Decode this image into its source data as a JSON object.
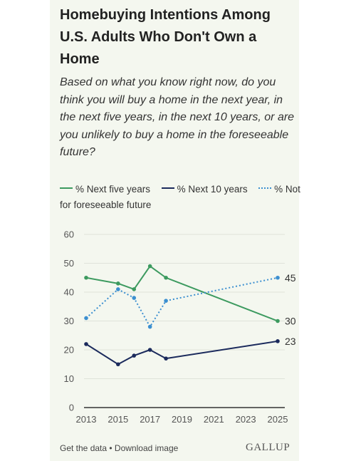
{
  "title": "Homebuying Intentions Among U.S. Adults Who Don't Own a Home",
  "subtitle": "Based on what you know right now, do you think you will buy a home in the next year, in the next five years, in the next 10 years, or are you unlikely to buy a home in the foreseeable future?",
  "footer": {
    "get_data": "Get the data",
    "separator": " • ",
    "download": "Download image",
    "brand": "GALLUP"
  },
  "colors": {
    "background": "#f4f7ef",
    "next_five": "#3c9a5f",
    "next_ten": "#1b2a5c",
    "not_foreseeable": "#3b8fd0",
    "grid": "#dfe3da",
    "axis": "#333333"
  },
  "chart_data": {
    "type": "line",
    "xlim": [
      2013,
      2025
    ],
    "ylim": [
      0,
      60
    ],
    "x_ticks": [
      "2013",
      "2015",
      "2017",
      "2019",
      "2021",
      "2023",
      "2025"
    ],
    "y_ticks": [
      "0",
      "10",
      "20",
      "30",
      "40",
      "50",
      "60"
    ],
    "grid": "horizontal",
    "legend_position": "top",
    "series": [
      {
        "name": "% Next five years",
        "color": "#3c9a5f",
        "style": "solid",
        "x": [
          2013,
          2015,
          2016,
          2017,
          2018,
          2025
        ],
        "values": [
          45,
          43,
          41,
          49,
          45,
          30
        ],
        "end_label": "30"
      },
      {
        "name": "% Next 10 years",
        "color": "#1b2a5c",
        "style": "solid",
        "x": [
          2013,
          2015,
          2016,
          2017,
          2018,
          2025
        ],
        "values": [
          22,
          15,
          18,
          20,
          17,
          23
        ],
        "end_label": "23"
      },
      {
        "name": "% Not for foreseeable future",
        "color": "#3b8fd0",
        "style": "dotted",
        "x": [
          2013,
          2015,
          2016,
          2017,
          2018,
          2025
        ],
        "values": [
          31,
          41,
          38,
          28,
          37,
          45
        ],
        "end_label": "45"
      }
    ]
  }
}
